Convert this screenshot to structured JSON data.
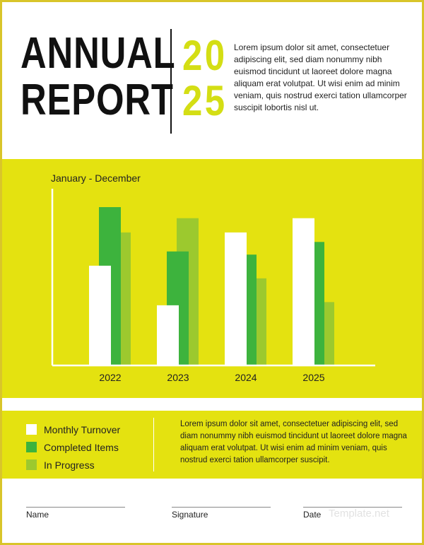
{
  "header": {
    "title_line1": "ANNUAL",
    "title_line2": "REPORT",
    "year_line1": "20",
    "year_line2": "25",
    "intro": "Lorem ipsum dolor sit amet, consectetuer adipiscing elit, sed diam nonummy nibh euismod tincidunt ut laoreet dolore magna aliquam erat volutpat. Ut wisi enim ad minim veniam, quis nostrud exerci tation ullamcorper suscipit lobortis nisl ut."
  },
  "colors": {
    "accent": "#e4e210",
    "monthly_turnover": "#ffffff",
    "completed_items": "#3db33d",
    "in_progress": "#9cc92e"
  },
  "chart_data": {
    "type": "bar",
    "title": "January - December",
    "xlabel": "",
    "ylabel": "",
    "categories": [
      "2022",
      "2023",
      "2024",
      "2025"
    ],
    "ylim": [
      0,
      100
    ],
    "series": [
      {
        "name": "Monthly Turnover",
        "values": [
          63,
          38,
          84,
          93
        ]
      },
      {
        "name": "Completed Items",
        "values": [
          100,
          72,
          70,
          78
        ]
      },
      {
        "name": "In Progress",
        "values": [
          84,
          93,
          55,
          40
        ]
      }
    ]
  },
  "legend": {
    "items": [
      "Monthly Turnover",
      "Completed Items",
      "In Progress"
    ]
  },
  "footnote": "Lorem ipsum dolor sit amet, consectetuer adipiscing elit, sed diam nonummy nibh euismod tincidunt ut laoreet dolore magna aliquam erat volutpat. Ut wisi enim ad minim veniam, quis nostrud exerci tation ullamcorper suscipit.",
  "signature_fields": {
    "name": "Name",
    "signature": "Signature",
    "date": "Date"
  },
  "watermark": "Template.net"
}
